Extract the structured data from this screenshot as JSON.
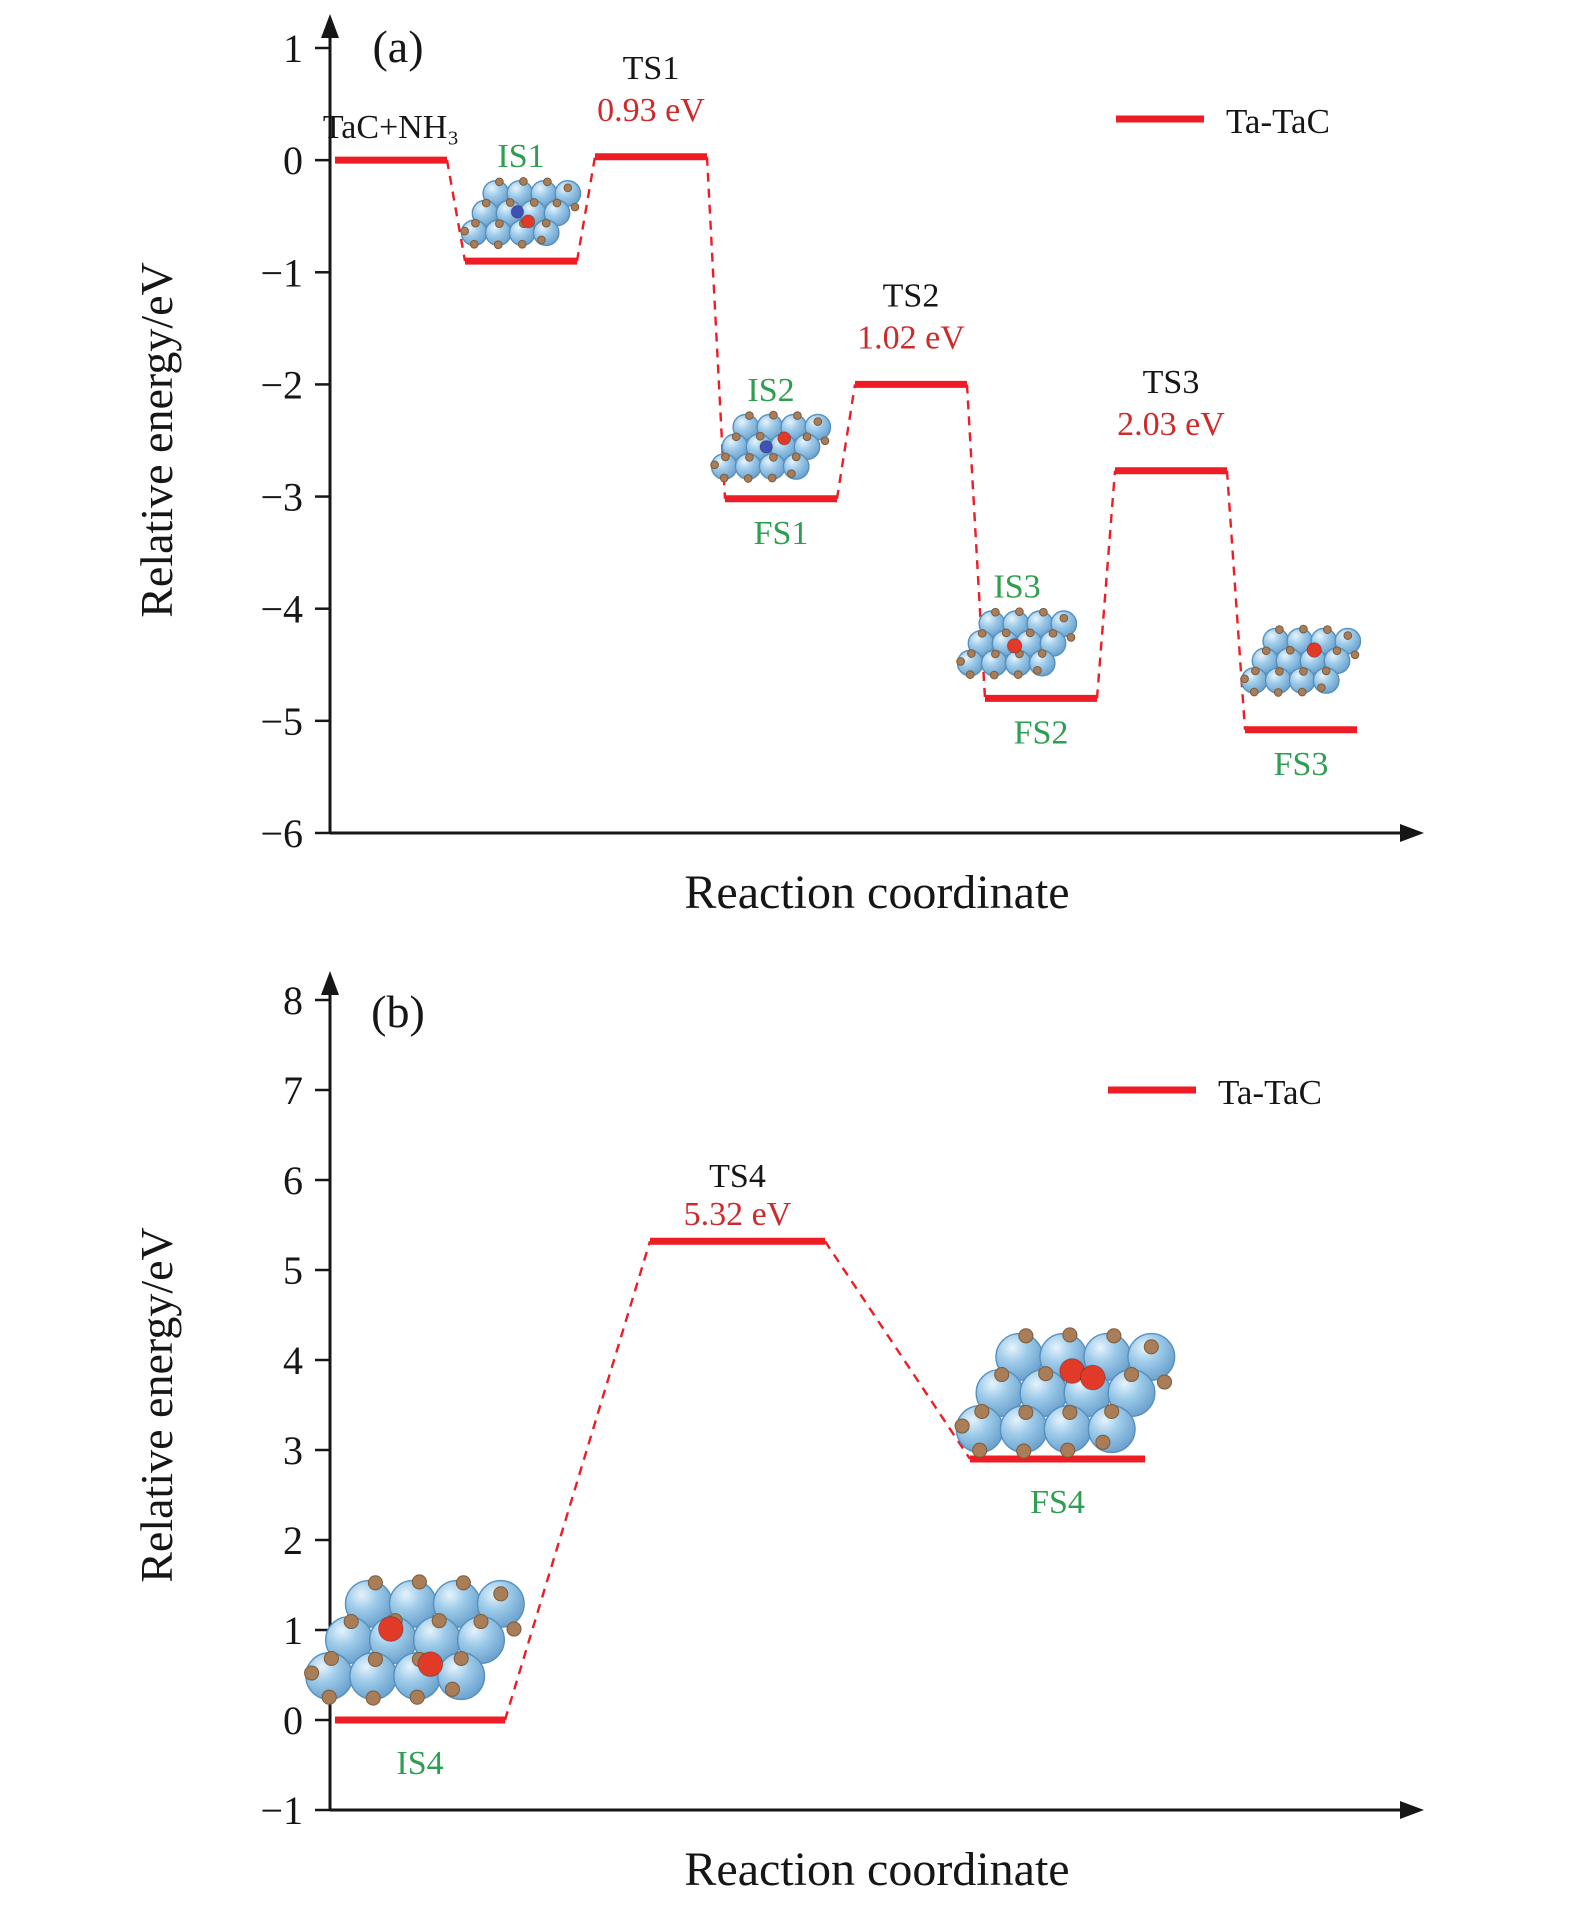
{
  "figure": {
    "background": "#ffffff",
    "line_red": "#ee1c24",
    "value_red": "#cf2a2a",
    "label_green": "#2e9e50",
    "text_black": "#161616",
    "sphere_blue": "#8fc3e8",
    "atom_brown": "#a87d58",
    "atom_red": "#e23a28",
    "atom_navy": "#3f51b5"
  },
  "chart_data": [
    {
      "type": "line",
      "panel": "(a)",
      "xlabel": "Reaction coordinate",
      "ylabel": "Relative energy/eV",
      "ylim": [
        -6,
        1
      ],
      "yticks": [
        1,
        0,
        -1,
        -2,
        -3,
        -4,
        -5,
        -6
      ],
      "grid": false,
      "legend": [
        {
          "label": "Ta-TaC",
          "color": "#ee1c24",
          "position": "upper right"
        }
      ],
      "levels": [
        {
          "id": "start",
          "top_label": "TaC+NH₃",
          "top_color": "black",
          "energy": 0.0
        },
        {
          "id": "IS1",
          "top_label": "IS1",
          "top_color": "green",
          "energy": -0.9,
          "molecule": true
        },
        {
          "id": "TS1",
          "top_label": "TS1",
          "top_color": "black",
          "barrier": "0.93 eV",
          "energy": 0.03
        },
        {
          "id": "FS1",
          "top_label": "IS2",
          "top_color": "green",
          "bottom_label": "FS1",
          "energy": -3.02,
          "molecule": true
        },
        {
          "id": "TS2",
          "top_label": "TS2",
          "top_color": "black",
          "barrier": "1.02 eV",
          "energy": -2.0
        },
        {
          "id": "FS2",
          "top_label": "IS3",
          "top_color": "green",
          "bottom_label": "FS2",
          "energy": -4.8,
          "molecule": true
        },
        {
          "id": "TS3",
          "top_label": "TS3",
          "top_color": "black",
          "barrier": "2.03 eV",
          "energy": -2.77
        },
        {
          "id": "FS3",
          "bottom_label": "FS3",
          "energy": -5.08,
          "molecule": true
        }
      ]
    },
    {
      "type": "line",
      "panel": "(b)",
      "xlabel": "Reaction coordinate",
      "ylabel": "Relative energy/eV",
      "ylim": [
        -1,
        8
      ],
      "yticks": [
        8,
        7,
        6,
        5,
        4,
        3,
        2,
        1,
        0,
        -1
      ],
      "grid": false,
      "legend": [
        {
          "label": "Ta-TaC",
          "color": "#ee1c24",
          "position": "upper right"
        }
      ],
      "levels": [
        {
          "id": "IS4",
          "bottom_label": "IS4",
          "energy": 0.0,
          "molecule": true
        },
        {
          "id": "TS4",
          "top_label": "TS4",
          "top_color": "black",
          "barrier": "5.32 eV",
          "energy": 5.32
        },
        {
          "id": "FS4",
          "bottom_label": "FS4",
          "energy": 2.9,
          "molecule": true
        }
      ]
    }
  ]
}
